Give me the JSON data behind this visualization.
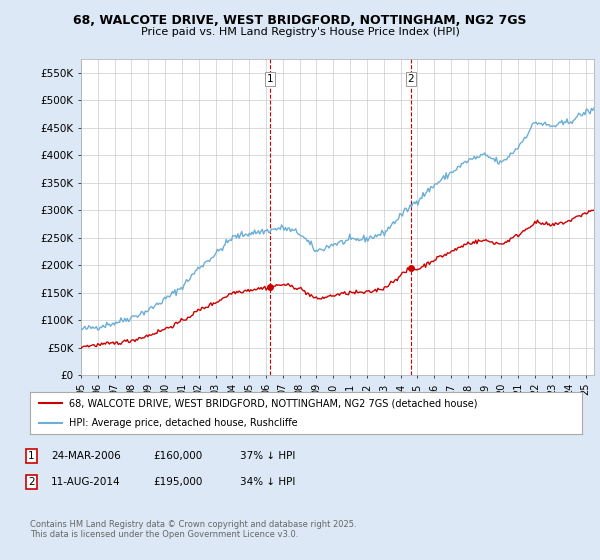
{
  "title_line1": "68, WALCOTE DRIVE, WEST BRIDGFORD, NOTTINGHAM, NG2 7GS",
  "title_line2": "Price paid vs. HM Land Registry's House Price Index (HPI)",
  "xlim_start": 1995.0,
  "xlim_end": 2025.5,
  "ylim": [
    0,
    575000
  ],
  "yticks": [
    0,
    50000,
    100000,
    150000,
    200000,
    250000,
    300000,
    350000,
    400000,
    450000,
    500000,
    550000
  ],
  "ytick_labels": [
    "£0",
    "£50K",
    "£100K",
    "£150K",
    "£200K",
    "£250K",
    "£300K",
    "£350K",
    "£400K",
    "£450K",
    "£500K",
    "£550K"
  ],
  "hpi_color": "#6baed6",
  "price_color": "#cc0000",
  "marker1_date": 2006.23,
  "marker1_price": 160000,
  "marker2_date": 2014.61,
  "marker2_price": 195000,
  "legend_line1": "68, WALCOTE DRIVE, WEST BRIDGFORD, NOTTINGHAM, NG2 7GS (detached house)",
  "legend_line2": "HPI: Average price, detached house, Rushcliffe",
  "footer": "Contains HM Land Registry data © Crown copyright and database right 2025.\nThis data is licensed under the Open Government Licence v3.0.",
  "background_color": "#dce8f5",
  "plot_bg_color": "#ffffff",
  "grid_color": "#cccccc"
}
